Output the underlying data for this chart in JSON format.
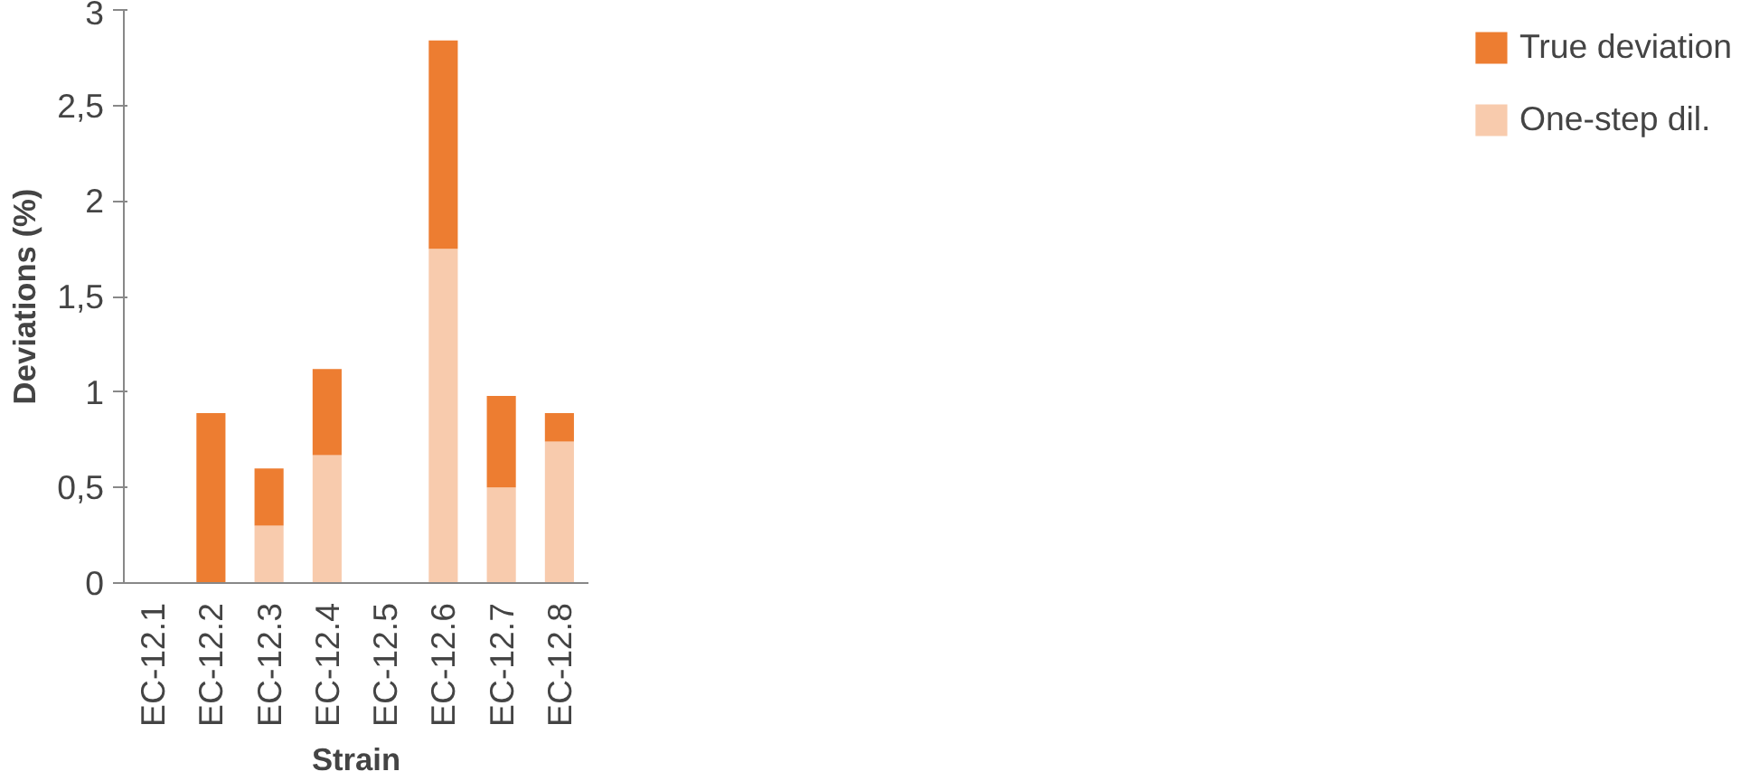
{
  "chart_data": {
    "type": "bar",
    "stacked": true,
    "xlabel": "Strain",
    "ylabel": "Deviations (%)",
    "categories": [
      "EC-12.1",
      "EC-12.2",
      "EC-12.3",
      "EC-12.4",
      "EC-12.5",
      "EC-12.6",
      "EC-12.7",
      "EC-12.8"
    ],
    "series": [
      {
        "name": "One-step dil.",
        "color": "#f8cbad",
        "values": [
          0,
          0,
          0.3,
          0.67,
          0,
          1.75,
          0.5,
          0.74
        ]
      },
      {
        "name": "True deviation",
        "color": "#ed7d31",
        "values": [
          0,
          0.89,
          0.3,
          0.45,
          0,
          1.09,
          0.48,
          0.15
        ]
      }
    ],
    "ylim": [
      0,
      3
    ],
    "yticks": [
      0,
      {
        "value": 0.5,
        "label": "0,5"
      },
      1,
      {
        "value": 1.5,
        "label": "1,5"
      },
      2,
      {
        "value": 2.5,
        "label": "2,5"
      },
      3
    ],
    "grid": false,
    "legend": "right"
  }
}
